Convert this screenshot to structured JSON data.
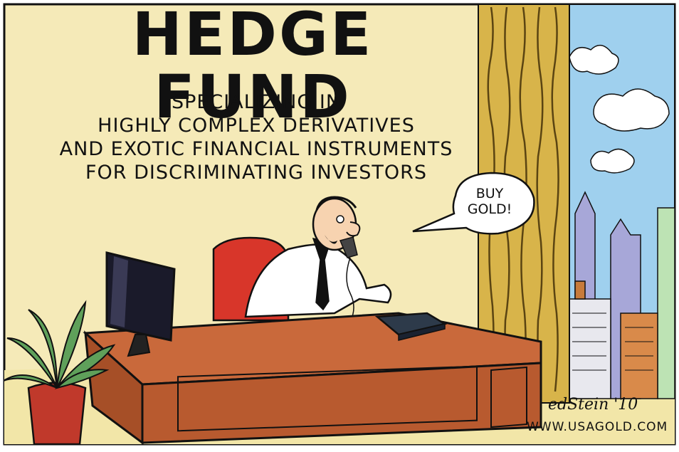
{
  "cartoon": {
    "title": "HEDGE FUND",
    "subtitle_lines": [
      "SPECIALIZING IN",
      "HIGHLY COMPLEX DERIVATIVES",
      "AND EXOTIC FINANCIAL INSTRUMENTS",
      "FOR DISCRIMINATING INVESTORS"
    ],
    "speech_lines": [
      "BUY",
      "GOLD!"
    ],
    "signature": "edStein '10",
    "website": "WWW.USAGOLD.COM"
  },
  "colors": {
    "wall": "#f5eab8",
    "sky": "#9fd0ee",
    "curtain": "#d8b44a",
    "desk": "#c9693b",
    "chair": "#d8362a",
    "plant": "#5fa05a",
    "pot": "#c0392b",
    "floor": "#f2e6a8",
    "building": "#a7a7d8",
    "outline": "#111111"
  },
  "icons": [
    "monitor-icon",
    "phone-icon",
    "plant-icon"
  ]
}
